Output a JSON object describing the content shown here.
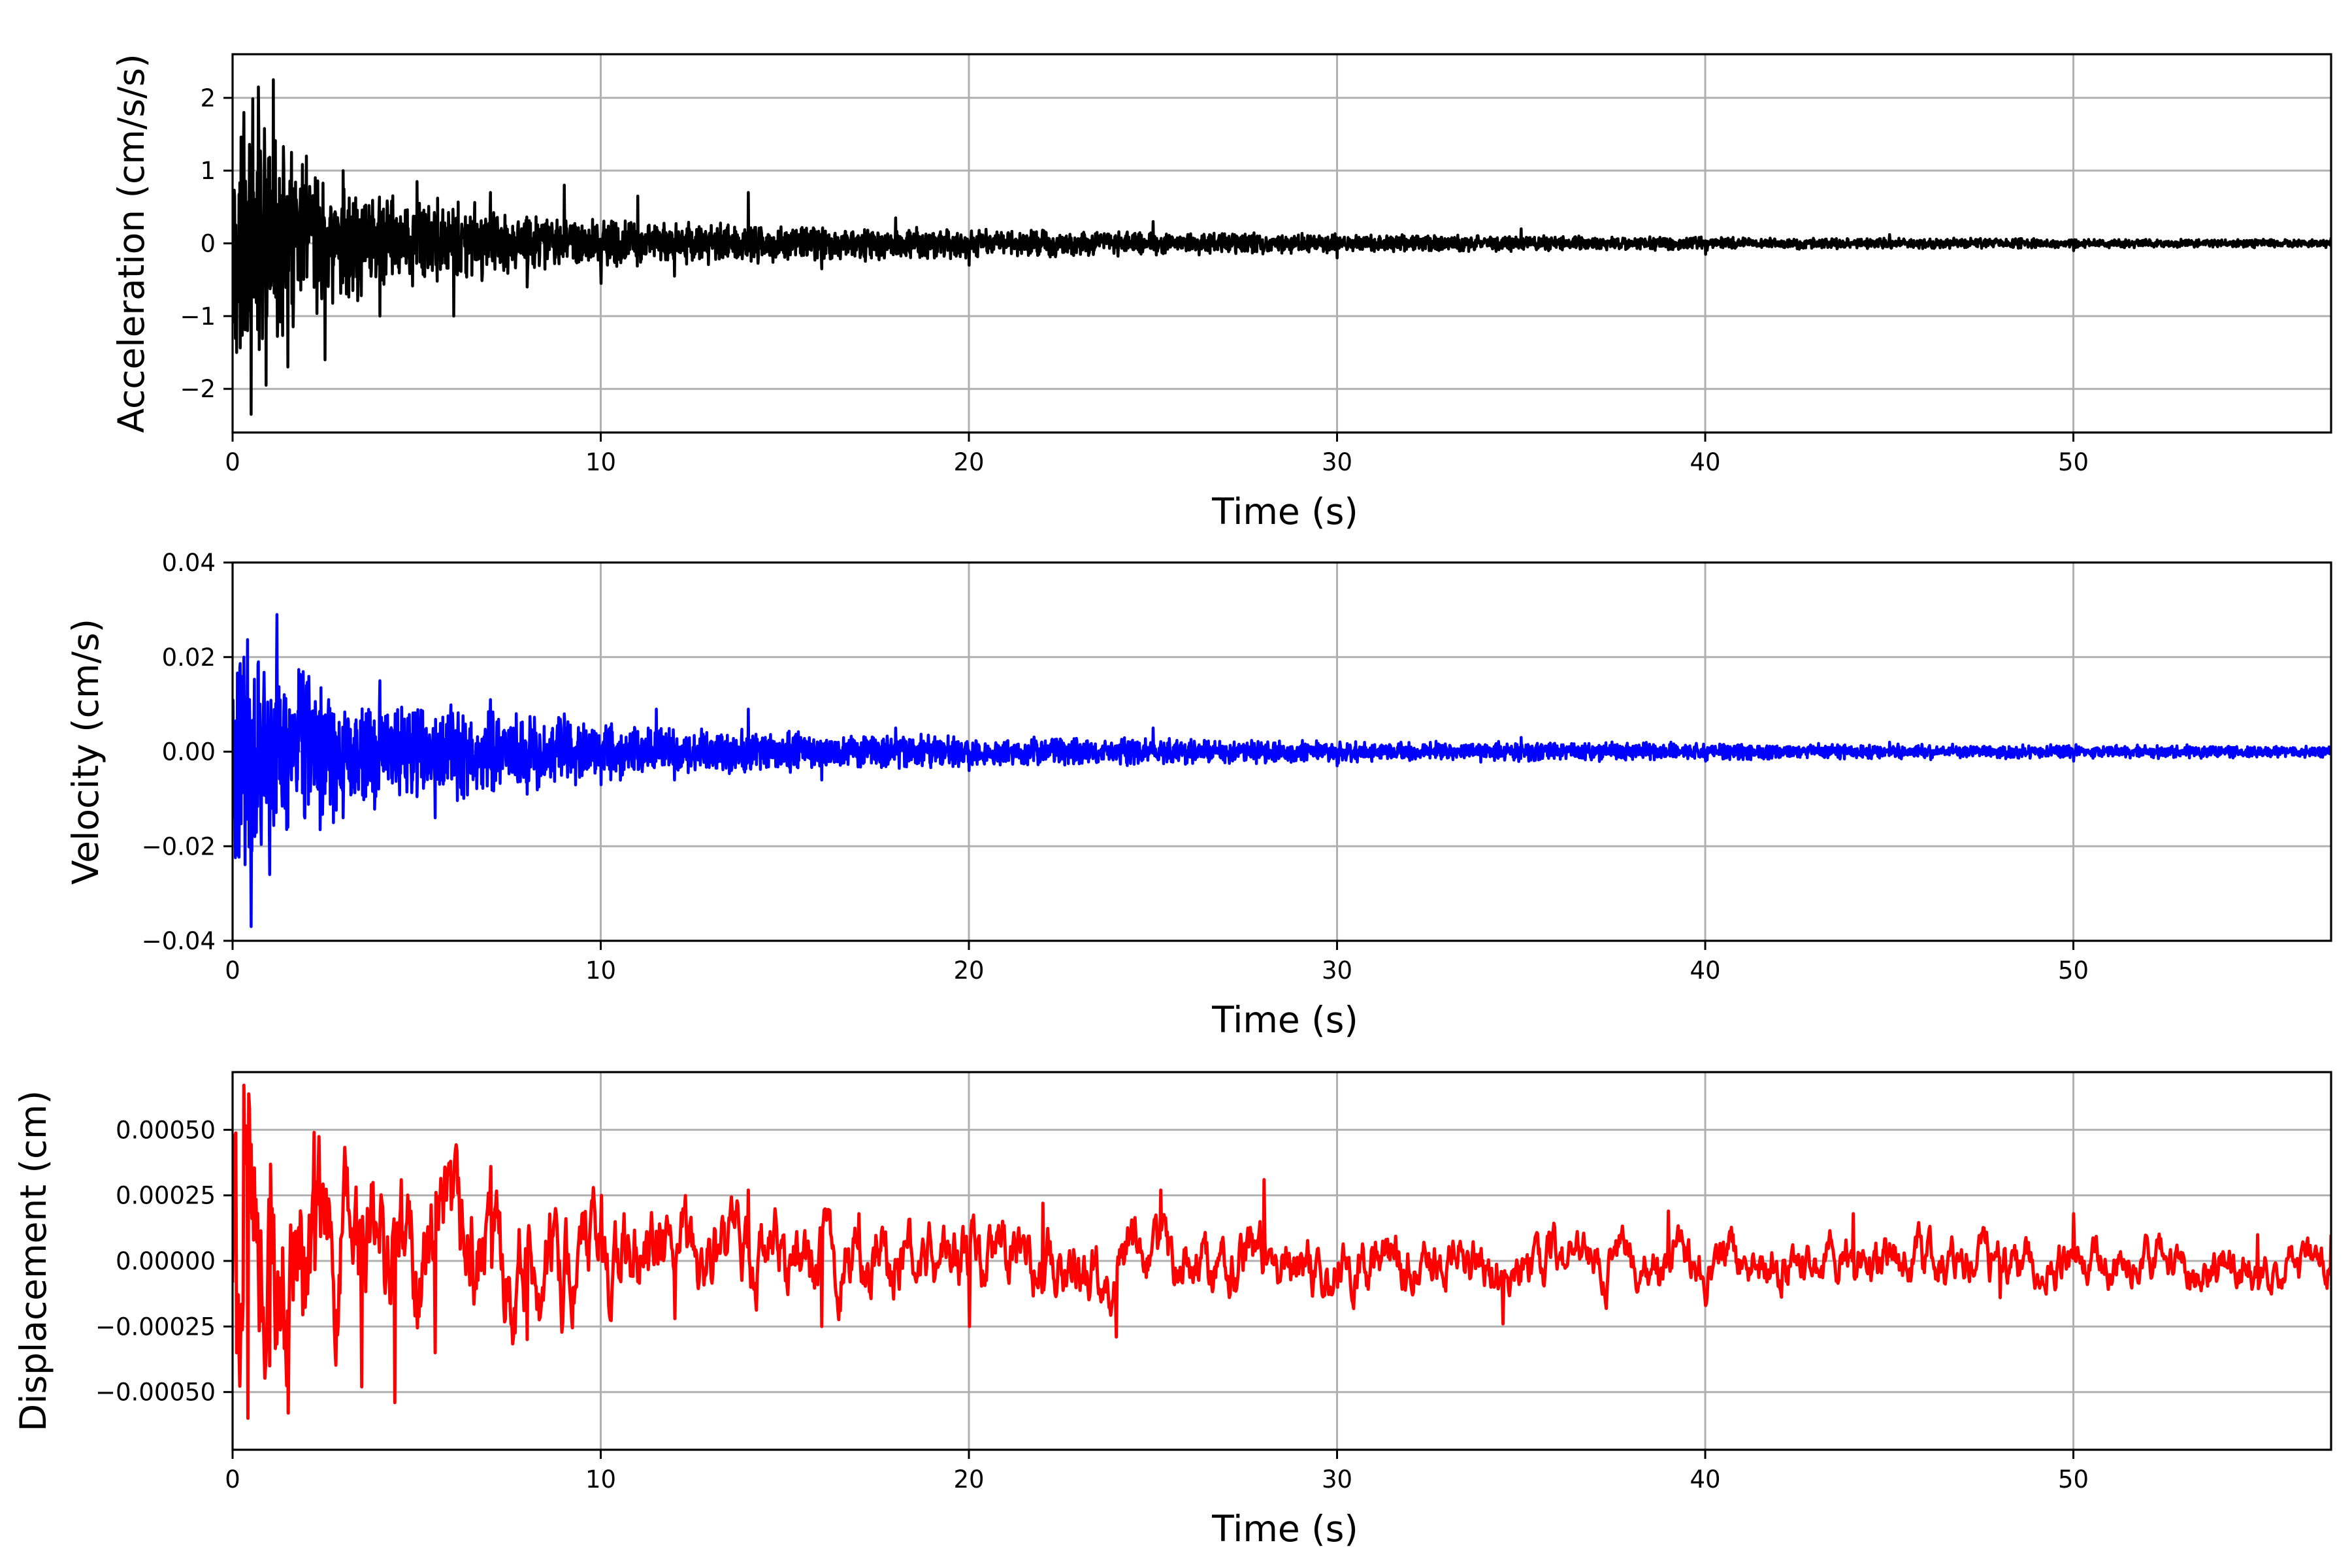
{
  "chart_data": [
    {
      "type": "line",
      "ylabel": "Acceleration (cm/s/s)",
      "xlabel": "Time (s)",
      "xlim": [
        0,
        57
      ],
      "ylim": [
        -2.6,
        2.6
      ],
      "xticks": [
        0,
        10,
        20,
        30,
        40,
        50
      ],
      "xtick_labels": [
        "0",
        "10",
        "20",
        "30",
        "40",
        "50"
      ],
      "yticks": [
        -2,
        -1,
        0,
        1,
        2
      ],
      "ytick_labels": [
        "−2",
        "−1",
        "0",
        "1",
        "2"
      ],
      "grid": true,
      "series": [
        {
          "color": "#000000",
          "x": [
            0.1,
            0.3,
            0.5,
            0.7,
            0.9,
            1.1,
            1.5,
            2.0,
            2.5,
            3.0,
            4.0,
            5.0,
            6.0,
            7.0,
            8.0,
            9.0,
            10.0,
            11.0,
            12.0,
            14.0,
            16.0,
            18.0,
            20.0,
            25.0,
            30.0,
            35.0,
            40.0,
            45.0,
            50.0,
            57.0
          ],
          "y": [
            -1.5,
            1.8,
            -2.35,
            2.15,
            -1.95,
            2.25,
            -1.7,
            1.2,
            -1.6,
            1.0,
            -1.0,
            0.85,
            -1.0,
            0.7,
            -0.6,
            0.8,
            -0.55,
            0.65,
            -0.45,
            0.7,
            -0.35,
            0.35,
            -0.3,
            0.3,
            -0.2,
            0.2,
            -0.15,
            0.12,
            -0.1,
            0.08
          ],
          "envelope_amplitude": [
            2.3,
            2.2,
            2.1,
            2.0,
            1.8,
            1.6,
            1.4,
            1.2,
            1.0,
            0.9,
            0.8,
            0.7,
            0.6,
            0.55,
            0.5,
            0.45,
            0.4,
            0.35,
            0.32,
            0.3,
            0.27,
            0.25,
            0.22,
            0.18,
            0.14,
            0.12,
            0.1,
            0.08,
            0.07,
            0.06
          ]
        }
      ]
    },
    {
      "type": "line",
      "ylabel": "Velocity (cm/s)",
      "xlabel": "Time (s)",
      "xlim": [
        0,
        57
      ],
      "ylim": [
        -0.04,
        0.04
      ],
      "xticks": [
        0,
        10,
        20,
        30,
        40,
        50
      ],
      "xtick_labels": [
        "0",
        "10",
        "20",
        "30",
        "40",
        "50"
      ],
      "yticks": [
        -0.04,
        -0.02,
        0.0,
        0.02,
        0.04
      ],
      "ytick_labels": [
        "−0.04",
        "−0.02",
        "0.00",
        "0.02",
        "0.04"
      ],
      "grid": true,
      "series": [
        {
          "color": "#0000ff",
          "x": [
            0.1,
            0.3,
            0.5,
            0.7,
            1.0,
            1.2,
            1.5,
            2.0,
            3.0,
            4.0,
            5.5,
            7.0,
            8.0,
            9.0,
            10.0,
            11.5,
            12.0,
            14.0,
            16.0,
            18.0,
            20.0,
            25.0,
            30.0,
            35.0,
            40.0,
            45.0,
            50.0,
            57.0
          ],
          "y": [
            -0.021,
            0.02,
            -0.037,
            0.019,
            -0.026,
            0.029,
            -0.016,
            0.014,
            -0.014,
            0.015,
            -0.014,
            0.011,
            -0.009,
            0.008,
            -0.007,
            0.009,
            -0.006,
            0.009,
            -0.006,
            0.005,
            -0.004,
            0.005,
            -0.003,
            0.003,
            -0.002,
            0.002,
            -0.002,
            0.001
          ],
          "envelope_amplitude": [
            0.03,
            0.029,
            0.028,
            0.026,
            0.024,
            0.022,
            0.02,
            0.018,
            0.015,
            0.013,
            0.012,
            0.01,
            0.009,
            0.008,
            0.007,
            0.006,
            0.0055,
            0.005,
            0.0045,
            0.004,
            0.0035,
            0.003,
            0.0025,
            0.0022,
            0.002,
            0.0018,
            0.0016,
            0.0014
          ]
        }
      ]
    },
    {
      "type": "line",
      "ylabel": "Displacement (cm)",
      "xlabel": "Time (s)",
      "xlim": [
        0,
        57
      ],
      "ylim": [
        -0.00072,
        0.00072
      ],
      "xticks": [
        0,
        10,
        20,
        30,
        40,
        50
      ],
      "xtick_labels": [
        "0",
        "10",
        "20",
        "30",
        "40",
        "50"
      ],
      "yticks": [
        -0.0005,
        -0.00025,
        0.0,
        0.00025,
        0.0005
      ],
      "ytick_labels": [
        "−0.00050",
        "−0.00025",
        "0.00000",
        "0.00025",
        "0.00050"
      ],
      "grid": true,
      "series": [
        {
          "color": "#ff0000",
          "x": [
            0.1,
            0.3,
            0.4,
            1.0,
            1.5,
            2.2,
            3.5,
            4.4,
            5.5,
            7.0,
            8.0,
            10.0,
            12.0,
            14.0,
            16.0,
            17.0,
            20.0,
            22.0,
            24.0,
            25.2,
            28.0,
            30.0,
            34.5,
            39.0,
            40.0,
            44.0,
            48.0,
            50.0,
            55.0,
            57.0
          ],
          "y": [
            -0.00035,
            0.00067,
            -0.0006,
            -0.0004,
            -0.00058,
            0.00049,
            -0.00048,
            -0.00054,
            -0.00035,
            0.00036,
            -0.0003,
            0.00025,
            -0.00022,
            0.00027,
            -0.00025,
            0.00018,
            -0.00025,
            0.00022,
            -0.00029,
            0.00027,
            0.00031,
            -0.0001,
            -0.00024,
            0.00019,
            -0.00017,
            0.00018,
            -0.00014,
            0.00018,
            0.0001,
            0.0001
          ],
          "envelope_amplitude": [
            0.0006,
            0.0006,
            0.00055,
            0.0005,
            0.00045,
            0.0004,
            0.00035,
            0.0003,
            0.00028,
            0.00025,
            0.00023,
            0.0002,
            0.00018,
            0.00017,
            0.00016,
            0.00015,
            0.00014,
            0.00013,
            0.00013,
            0.00012,
            0.00012,
            0.00011,
            0.00011,
            0.0001,
            0.0001,
            0.0001,
            0.0001,
            9e-05,
            9e-05,
            9e-05
          ]
        }
      ]
    }
  ]
}
